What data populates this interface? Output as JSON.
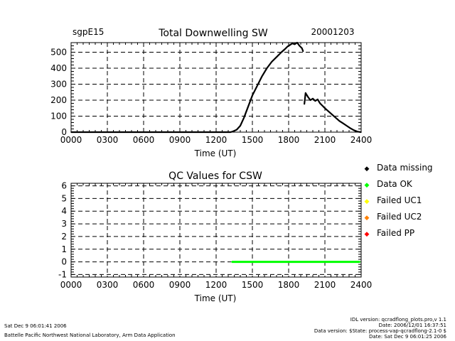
{
  "chart_data": [
    {
      "type": "line",
      "title": "Total Downwelling SW",
      "site_label": "sgpE15",
      "date_label": "20001203",
      "xlabel": "Time (UT)",
      "ylabel": "",
      "x_ticks": [
        "0000",
        "0300",
        "0600",
        "0900",
        "1200",
        "1500",
        "1800",
        "2100",
        "2400"
      ],
      "y_ticks": [
        "0",
        "100",
        "200",
        "300",
        "400",
        "500"
      ],
      "xlim": [
        0,
        24
      ],
      "ylim": [
        0,
        560
      ],
      "grid": "dashed",
      "series": [
        {
          "x": [
            0,
            13.2,
            13.4,
            13.7,
            14.0,
            14.3,
            14.6,
            15.0,
            15.4,
            15.8,
            16.2,
            16.6,
            17.0,
            17.4,
            17.7,
            17.9,
            18.1,
            18.3,
            18.5,
            18.7,
            18.9,
            19.1,
            19.2
          ],
          "y": [
            0,
            0,
            5,
            15,
            40,
            90,
            150,
            230,
            290,
            350,
            400,
            440,
            470,
            500,
            520,
            535,
            545,
            555,
            550,
            560,
            540,
            525,
            505
          ]
        },
        {
          "x": [
            19.3,
            19.4,
            19.6,
            19.8,
            20.0,
            20.2,
            20.4,
            20.6,
            20.8,
            21.0,
            21.3,
            21.6,
            21.9,
            22.2,
            22.5,
            22.8,
            23.1,
            23.4,
            23.7,
            24.0
          ],
          "y": [
            175,
            245,
            220,
            200,
            210,
            195,
            205,
            180,
            165,
            150,
            130,
            110,
            90,
            70,
            55,
            40,
            25,
            12,
            3,
            0
          ]
        }
      ]
    },
    {
      "type": "line",
      "title": "QC Values for CSW",
      "xlabel": "Time (UT)",
      "ylabel": "",
      "x_ticks": [
        "0000",
        "0300",
        "0600",
        "0900",
        "1200",
        "1500",
        "1800",
        "2100",
        "2400"
      ],
      "y_ticks": [
        "-1",
        "0",
        "1",
        "2",
        "3",
        "4",
        "5",
        "6"
      ],
      "xlim": [
        0,
        24
      ],
      "ylim": [
        -1.2,
        6.2
      ],
      "grid": "dashed",
      "series": [
        {
          "name": "Data OK",
          "x": [
            13.3,
            23.9
          ],
          "y": [
            0,
            0
          ],
          "color": "#00ff00"
        }
      ]
    }
  ],
  "legend": [
    {
      "label": "Data missing",
      "color": "#000000"
    },
    {
      "label": "Data OK",
      "color": "#00ff00"
    },
    {
      "label": "Failed UC1",
      "color": "#ffff00"
    },
    {
      "label": "Failed UC2",
      "color": "#ff8000"
    },
    {
      "label": "Failed PP",
      "color": "#ff0000"
    }
  ],
  "footer": {
    "left_line1": "Sat Dec  9 06:01:41 2006",
    "left_line2": "Battelle Pacific Northwest National Laboratory, Arm Data Application",
    "right_line1": "IDL version: qcradflong_plots.pro,v 1.1",
    "right_line2": "Date: 2006/12/01 16:37:51",
    "right_line3": "Data version: $State: process-vap-qcradflong-2.1-0 $",
    "right_line4": "Date: Sat Dec  9 06:01:25 2006"
  }
}
